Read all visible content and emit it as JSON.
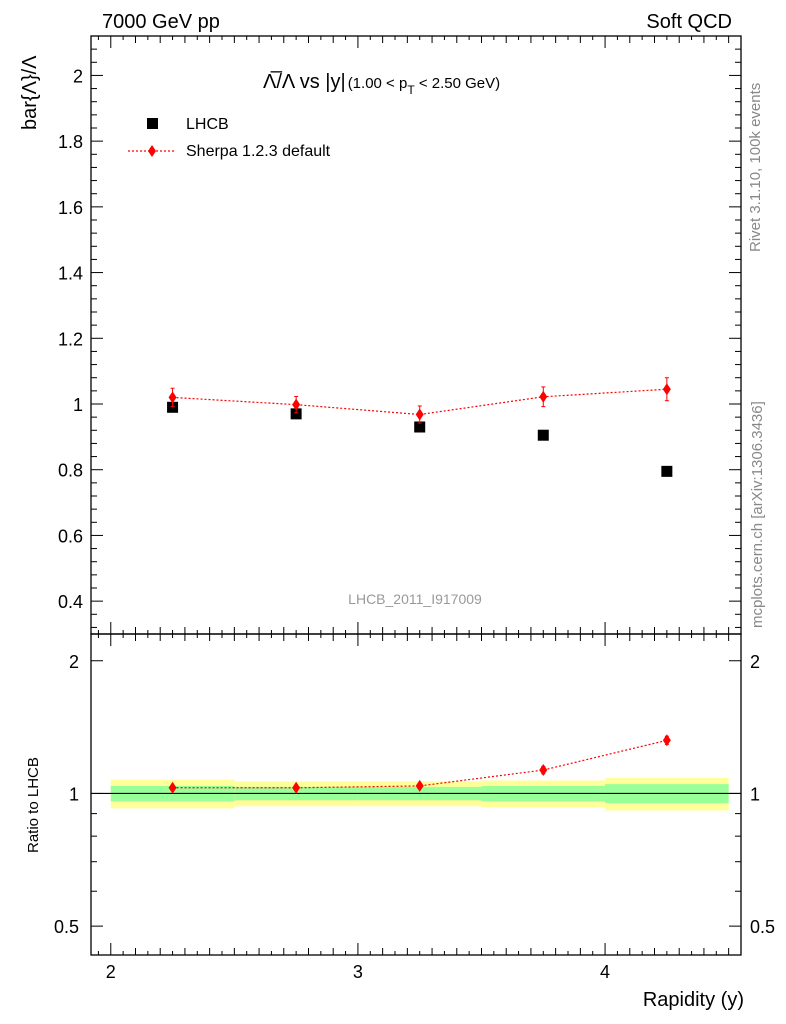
{
  "header": {
    "left": "7000 GeV pp",
    "right": "Soft QCD"
  },
  "side_labels": {
    "rivet": "Rivet 3.1.10,  100k events",
    "source": "mcplots.cern.ch [arXiv:1306.3436]"
  },
  "watermark": "LHCB_2011_I917009",
  "colors": {
    "data": "#000000",
    "mc": "#ff0000",
    "band_inner": "#99ff99",
    "band_outer": "#ffff99"
  },
  "chart_data": [
    {
      "type": "scatter",
      "title_parts": {
        "main": "Λ̅/Λ vs |y|",
        "cond_open": "(1.00 < p",
        "cond_sub": "T",
        "cond_close": " < 2.50 GeV)"
      },
      "ylabel": "bar{Λ}/Λ",
      "ylim": [
        0.3,
        2.12
      ],
      "yticks": [
        0.4,
        0.6,
        0.8,
        1,
        1.2,
        1.4,
        1.6,
        1.8,
        2
      ],
      "ytick_labels": [
        "0.4",
        "0.6",
        "0.8",
        "1",
        "1.2",
        "1.4",
        "1.6",
        "1.8",
        "2"
      ],
      "xlim": [
        1.92,
        4.55
      ],
      "legend_position": "top-left",
      "series": [
        {
          "name": "LHCB",
          "marker": "square",
          "x": [
            2.25,
            2.75,
            3.25,
            3.75,
            4.25
          ],
          "y": [
            0.99,
            0.97,
            0.93,
            0.905,
            0.795
          ]
        },
        {
          "name": "Sherpa 1.2.3 default",
          "marker": "diamond",
          "line": "dotted",
          "x": [
            2.25,
            2.75,
            3.25,
            3.75,
            4.25
          ],
          "y": [
            1.02,
            0.998,
            0.968,
            1.022,
            1.045
          ],
          "err": [
            0.028,
            0.025,
            0.026,
            0.03,
            0.035
          ]
        }
      ]
    },
    {
      "type": "scatter",
      "ylabel": "Ratio to LHCB",
      "xlabel": "Rapidity (y)",
      "ylim": [
        0.43,
        2.3
      ],
      "log_y": true,
      "yticks": [
        0.5,
        1,
        2
      ],
      "ytick_labels": [
        "0.5",
        "1",
        "2"
      ],
      "xticks": [
        2,
        3,
        4
      ],
      "xtick_labels": [
        "2",
        "3",
        "4"
      ],
      "xlim": [
        1.92,
        4.55
      ],
      "bins": [
        2.0,
        2.5,
        3.0,
        3.5,
        4.0,
        4.5
      ],
      "band_inner": [
        0.04,
        0.035,
        0.035,
        0.04,
        0.05
      ],
      "band_outer": [
        0.075,
        0.065,
        0.065,
        0.07,
        0.085
      ],
      "series": [
        {
          "name": "Sherpa 1.2.3 default",
          "x": [
            2.25,
            2.75,
            3.25,
            3.75,
            4.25
          ],
          "y": [
            1.03,
            1.03,
            1.04,
            1.13,
            1.32
          ],
          "err": [
            0.012,
            0.012,
            0.012,
            0.022,
            0.028
          ]
        }
      ]
    }
  ]
}
